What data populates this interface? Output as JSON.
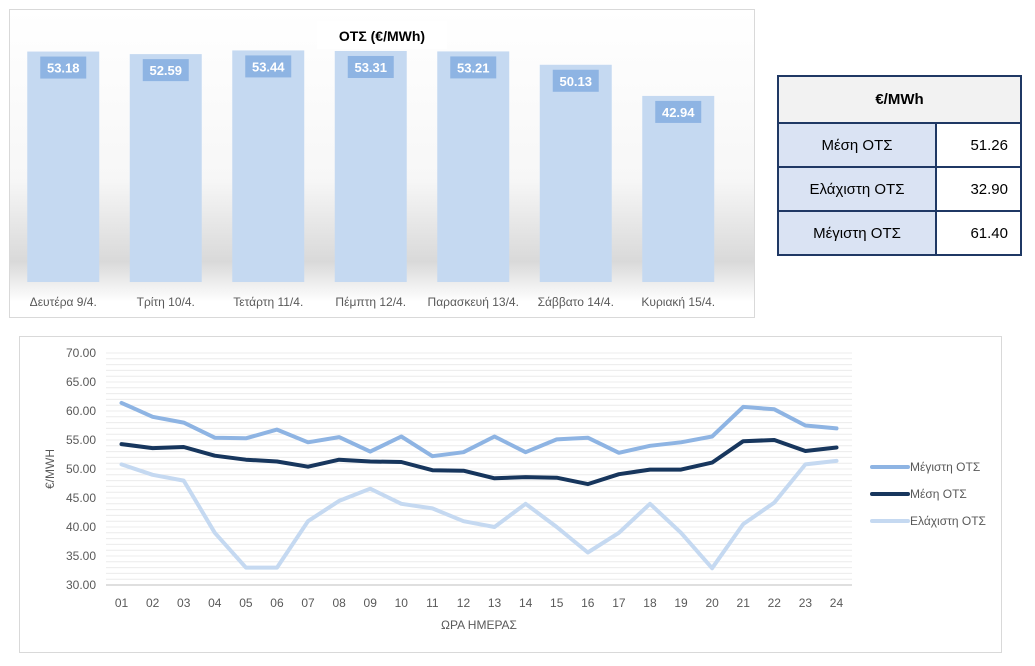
{
  "chart_data": [
    {
      "type": "bar",
      "title": "ΟΤΣ (€/MWh)",
      "categories": [
        "Δευτέρα 9/4.",
        "Τρίτη 10/4.",
        "Τετάρτη 11/4.",
        "Πέμπτη 12/4.",
        "Παρασκευή 13/4.",
        "Σάββατο 14/4.",
        "Κυριακή 15/4."
      ],
      "values": [
        53.18,
        52.59,
        53.44,
        53.31,
        53.21,
        50.13,
        42.94
      ],
      "data_labels": [
        "53.18",
        "52.59",
        "53.44",
        "53.31",
        "53.21",
        "50.13",
        "42.94"
      ],
      "ylim": [
        0,
        60
      ],
      "colors": {
        "bar": "#c5d9f1",
        "label_bg": "#8eb4e3",
        "label_text": "#ffffff"
      }
    },
    {
      "type": "line",
      "xlabel": "ΩΡΑ ΗΜΕΡΑΣ",
      "ylabel": "€/MWH",
      "x": [
        "01",
        "02",
        "03",
        "04",
        "05",
        "06",
        "07",
        "08",
        "09",
        "10",
        "11",
        "12",
        "13",
        "14",
        "15",
        "16",
        "17",
        "18",
        "19",
        "20",
        "21",
        "22",
        "23",
        "24"
      ],
      "ylim": [
        30,
        70
      ],
      "yticks": [
        "30.00",
        "35.00",
        "40.00",
        "45.00",
        "50.00",
        "55.00",
        "60.00",
        "65.00",
        "70.00"
      ],
      "legend": "right",
      "series": [
        {
          "name": "Μέγιστη ΟΤΣ",
          "color": "#8eb4e3",
          "values": [
            61.4,
            59.0,
            58.0,
            55.4,
            55.3,
            56.8,
            54.6,
            55.5,
            53.0,
            55.6,
            52.2,
            52.9,
            55.6,
            52.9,
            55.1,
            55.4,
            52.8,
            54.0,
            54.6,
            55.6,
            60.7,
            60.3,
            57.5,
            57.0
          ]
        },
        {
          "name": "Μέση ΟΤΣ",
          "color": "#17365d",
          "values": [
            54.3,
            53.6,
            53.8,
            52.3,
            51.6,
            51.3,
            50.4,
            51.6,
            51.3,
            51.2,
            49.8,
            49.7,
            48.4,
            48.6,
            48.5,
            47.4,
            49.1,
            49.9,
            49.9,
            51.1,
            54.8,
            55.0,
            53.1,
            53.7
          ]
        },
        {
          "name": "Ελάχιστη ΟΤΣ",
          "color": "#c5d9f1",
          "values": [
            50.8,
            49.0,
            48.0,
            39.0,
            33.0,
            33.0,
            41.0,
            44.5,
            46.6,
            44.0,
            43.2,
            41.0,
            40.0,
            44.0,
            40.0,
            35.6,
            39.0,
            44.0,
            39.0,
            32.9,
            40.5,
            44.2,
            50.8,
            51.4
          ]
        }
      ]
    }
  ],
  "stats_table": {
    "header": "€/MWh",
    "rows": [
      {
        "label": "Μέση ΟΤΣ",
        "value": "51.26"
      },
      {
        "label": "Ελάχιστη ΟΤΣ",
        "value": "32.90"
      },
      {
        "label": "Μέγιστη ΟΤΣ",
        "value": "61.40"
      }
    ]
  }
}
